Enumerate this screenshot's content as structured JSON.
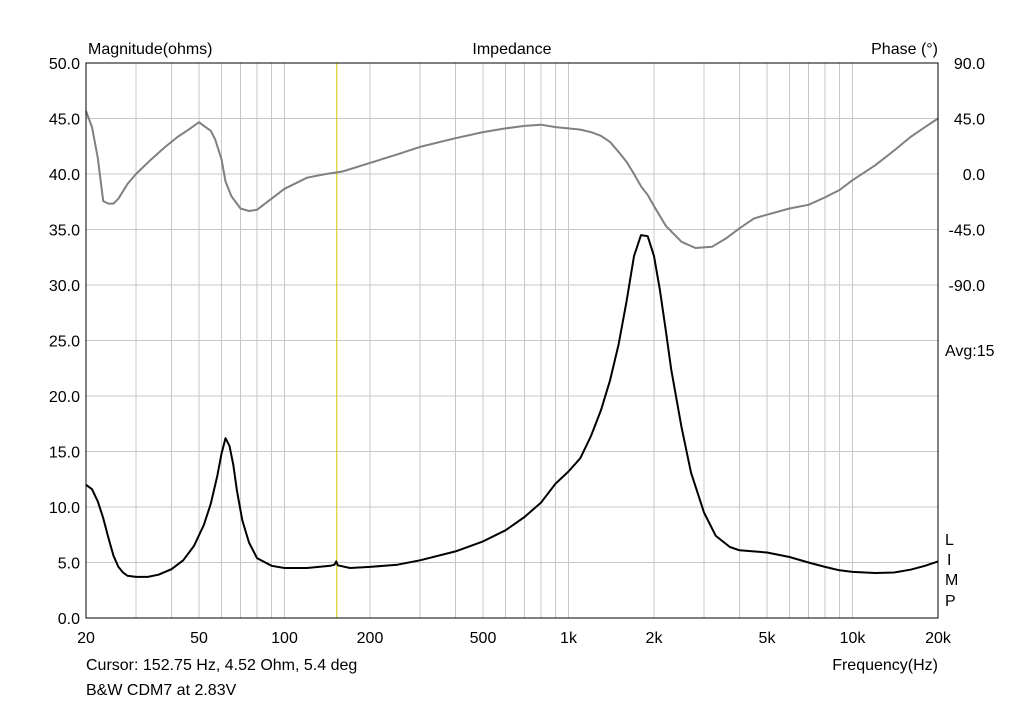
{
  "chart_data": {
    "type": "line",
    "title": "Impedance",
    "left_axis_label": "Magnitude(ohms)",
    "right_axis_label": "Phase (°)",
    "xlabel": "Frequency(Hz)",
    "x_scale": "log",
    "xlim": [
      20,
      20000
    ],
    "ylim": [
      0,
      50
    ],
    "y2lim": [
      -90,
      90
    ],
    "grid": true,
    "x_ticks": [
      {
        "value": 20,
        "label": "20"
      },
      {
        "value": 50,
        "label": "50"
      },
      {
        "value": 100,
        "label": "100"
      },
      {
        "value": 200,
        "label": "200"
      },
      {
        "value": 500,
        "label": "500"
      },
      {
        "value": 1000,
        "label": "1k"
      },
      {
        "value": 2000,
        "label": "2k"
      },
      {
        "value": 5000,
        "label": "5k"
      },
      {
        "value": 10000,
        "label": "10k"
      },
      {
        "value": 20000,
        "label": "20k"
      }
    ],
    "y_ticks": [
      {
        "value": 0,
        "label": "0.0"
      },
      {
        "value": 5,
        "label": "5.0"
      },
      {
        "value": 10,
        "label": "10.0"
      },
      {
        "value": 15,
        "label": "15.0"
      },
      {
        "value": 20,
        "label": "20.0"
      },
      {
        "value": 25,
        "label": "25.0"
      },
      {
        "value": 30,
        "label": "30.0"
      },
      {
        "value": 35,
        "label": "35.0"
      },
      {
        "value": 40,
        "label": "40.0"
      },
      {
        "value": 45,
        "label": "45.0"
      },
      {
        "value": 50,
        "label": "50.0"
      }
    ],
    "y2_ticks": [
      {
        "value": 90,
        "label": "90.0"
      },
      {
        "value": 45,
        "label": "45.0"
      },
      {
        "value": 0,
        "label": "0.0"
      },
      {
        "value": -45,
        "label": "-45.0"
      },
      {
        "value": -90,
        "label": "-90.0"
      }
    ],
    "avg_label": "Avg:15",
    "side_letters": [
      "L",
      "I",
      "M",
      "P"
    ],
    "cursor": {
      "frequency": 152.75,
      "text": "Cursor: 152.75 Hz, 4.52 Ohm, 5.4 deg"
    },
    "caption": "B&W CDM7 at 2.83V",
    "colors": {
      "magnitude": "#000000",
      "phase": "#808080",
      "grid": "#c8c8c8",
      "cursor": "#d8c800"
    },
    "series": [
      {
        "axis": "left",
        "color": "#000000",
        "points": [
          [
            20,
            12.0
          ],
          [
            21,
            11.6
          ],
          [
            22,
            10.5
          ],
          [
            23,
            9.0
          ],
          [
            24,
            7.2
          ],
          [
            25,
            5.6
          ],
          [
            26,
            4.6
          ],
          [
            27,
            4.1
          ],
          [
            28,
            3.8
          ],
          [
            30,
            3.7
          ],
          [
            33,
            3.7
          ],
          [
            36,
            3.9
          ],
          [
            40,
            4.4
          ],
          [
            44,
            5.2
          ],
          [
            48,
            6.5
          ],
          [
            52,
            8.4
          ],
          [
            55,
            10.3
          ],
          [
            58,
            12.8
          ],
          [
            60,
            14.8
          ],
          [
            62,
            16.2
          ],
          [
            64,
            15.5
          ],
          [
            66,
            13.8
          ],
          [
            68,
            11.5
          ],
          [
            71,
            8.8
          ],
          [
            75,
            6.8
          ],
          [
            80,
            5.4
          ],
          [
            90,
            4.7
          ],
          [
            100,
            4.5
          ],
          [
            120,
            4.5
          ],
          [
            145,
            4.7
          ],
          [
            150,
            4.8
          ],
          [
            152,
            5.1
          ],
          [
            154,
            4.75
          ],
          [
            170,
            4.5
          ],
          [
            200,
            4.6
          ],
          [
            250,
            4.8
          ],
          [
            300,
            5.2
          ],
          [
            400,
            6.0
          ],
          [
            500,
            6.9
          ],
          [
            600,
            7.9
          ],
          [
            700,
            9.1
          ],
          [
            800,
            10.4
          ],
          [
            900,
            12.1
          ],
          [
            1000,
            13.2
          ],
          [
            1100,
            14.4
          ],
          [
            1200,
            16.4
          ],
          [
            1300,
            18.7
          ],
          [
            1400,
            21.4
          ],
          [
            1500,
            24.6
          ],
          [
            1600,
            28.5
          ],
          [
            1700,
            32.6
          ],
          [
            1800,
            34.5
          ],
          [
            1900,
            34.4
          ],
          [
            2000,
            32.6
          ],
          [
            2100,
            29.5
          ],
          [
            2200,
            25.9
          ],
          [
            2300,
            22.4
          ],
          [
            2500,
            17.2
          ],
          [
            2700,
            13.1
          ],
          [
            3000,
            9.5
          ],
          [
            3300,
            7.4
          ],
          [
            3700,
            6.4
          ],
          [
            4000,
            6.1
          ],
          [
            5000,
            5.9
          ],
          [
            6000,
            5.5
          ],
          [
            7000,
            5.0
          ],
          [
            8000,
            4.6
          ],
          [
            9000,
            4.3
          ],
          [
            10000,
            4.15
          ],
          [
            12000,
            4.05
          ],
          [
            14000,
            4.1
          ],
          [
            16000,
            4.35
          ],
          [
            18000,
            4.7
          ],
          [
            20000,
            5.1
          ]
        ]
      },
      {
        "axis": "right",
        "color": "#808080",
        "points": [
          [
            20,
            51
          ],
          [
            21,
            38
          ],
          [
            22,
            13
          ],
          [
            23,
            -22
          ],
          [
            24,
            -24
          ],
          [
            25,
            -24
          ],
          [
            26,
            -20
          ],
          [
            28,
            -8
          ],
          [
            30,
            0
          ],
          [
            34,
            12
          ],
          [
            38,
            22
          ],
          [
            42,
            30
          ],
          [
            46,
            36
          ],
          [
            50,
            42
          ],
          [
            52,
            39
          ],
          [
            55,
            35
          ],
          [
            57,
            28
          ],
          [
            60,
            12
          ],
          [
            62,
            -6
          ],
          [
            65,
            -18
          ],
          [
            70,
            -28
          ],
          [
            75,
            -30
          ],
          [
            80,
            -29
          ],
          [
            90,
            -20
          ],
          [
            100,
            -12
          ],
          [
            120,
            -3
          ],
          [
            140,
            0
          ],
          [
            160,
            2
          ],
          [
            200,
            9
          ],
          [
            250,
            16
          ],
          [
            300,
            22
          ],
          [
            400,
            29
          ],
          [
            500,
            34
          ],
          [
            600,
            37
          ],
          [
            700,
            39
          ],
          [
            800,
            40
          ],
          [
            900,
            38
          ],
          [
            1000,
            37
          ],
          [
            1100,
            36
          ],
          [
            1200,
            34
          ],
          [
            1300,
            31
          ],
          [
            1400,
            26
          ],
          [
            1500,
            18
          ],
          [
            1600,
            10
          ],
          [
            1700,
            0
          ],
          [
            1800,
            -10
          ],
          [
            1900,
            -17
          ],
          [
            2000,
            -26
          ],
          [
            2200,
            -42
          ],
          [
            2500,
            -55
          ],
          [
            2800,
            -60
          ],
          [
            3200,
            -59
          ],
          [
            3600,
            -52
          ],
          [
            4000,
            -44
          ],
          [
            4500,
            -36
          ],
          [
            5000,
            -33
          ],
          [
            6000,
            -28
          ],
          [
            7000,
            -25
          ],
          [
            8000,
            -19
          ],
          [
            9000,
            -13
          ],
          [
            10000,
            -5
          ],
          [
            12000,
            7
          ],
          [
            14000,
            19
          ],
          [
            16000,
            30
          ],
          [
            18000,
            38
          ],
          [
            20000,
            45
          ]
        ]
      }
    ]
  }
}
